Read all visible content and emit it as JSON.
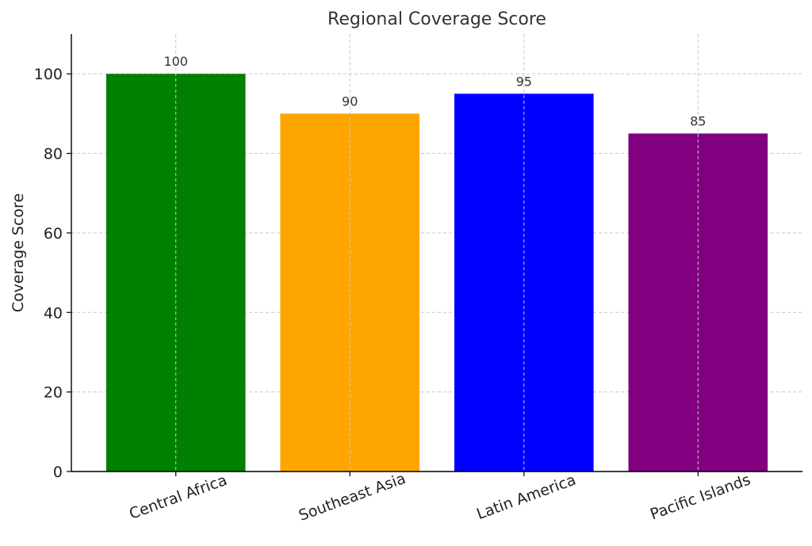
{
  "chart_data": {
    "type": "bar",
    "title": "Regional Coverage Score",
    "xlabel": "",
    "ylabel": "Coverage Score",
    "categories": [
      "Central Africa",
      "Southeast Asia",
      "Latin America",
      "Pacific Islands"
    ],
    "values": [
      100,
      90,
      95,
      85
    ],
    "colors": [
      "#008000",
      "#FFA500",
      "#0000FF",
      "#800080"
    ],
    "ylim": [
      0,
      110
    ],
    "yticks": [
      0,
      20,
      40,
      60,
      80,
      100
    ],
    "grid": true,
    "data_labels": true,
    "x_tick_rotation": 20
  }
}
